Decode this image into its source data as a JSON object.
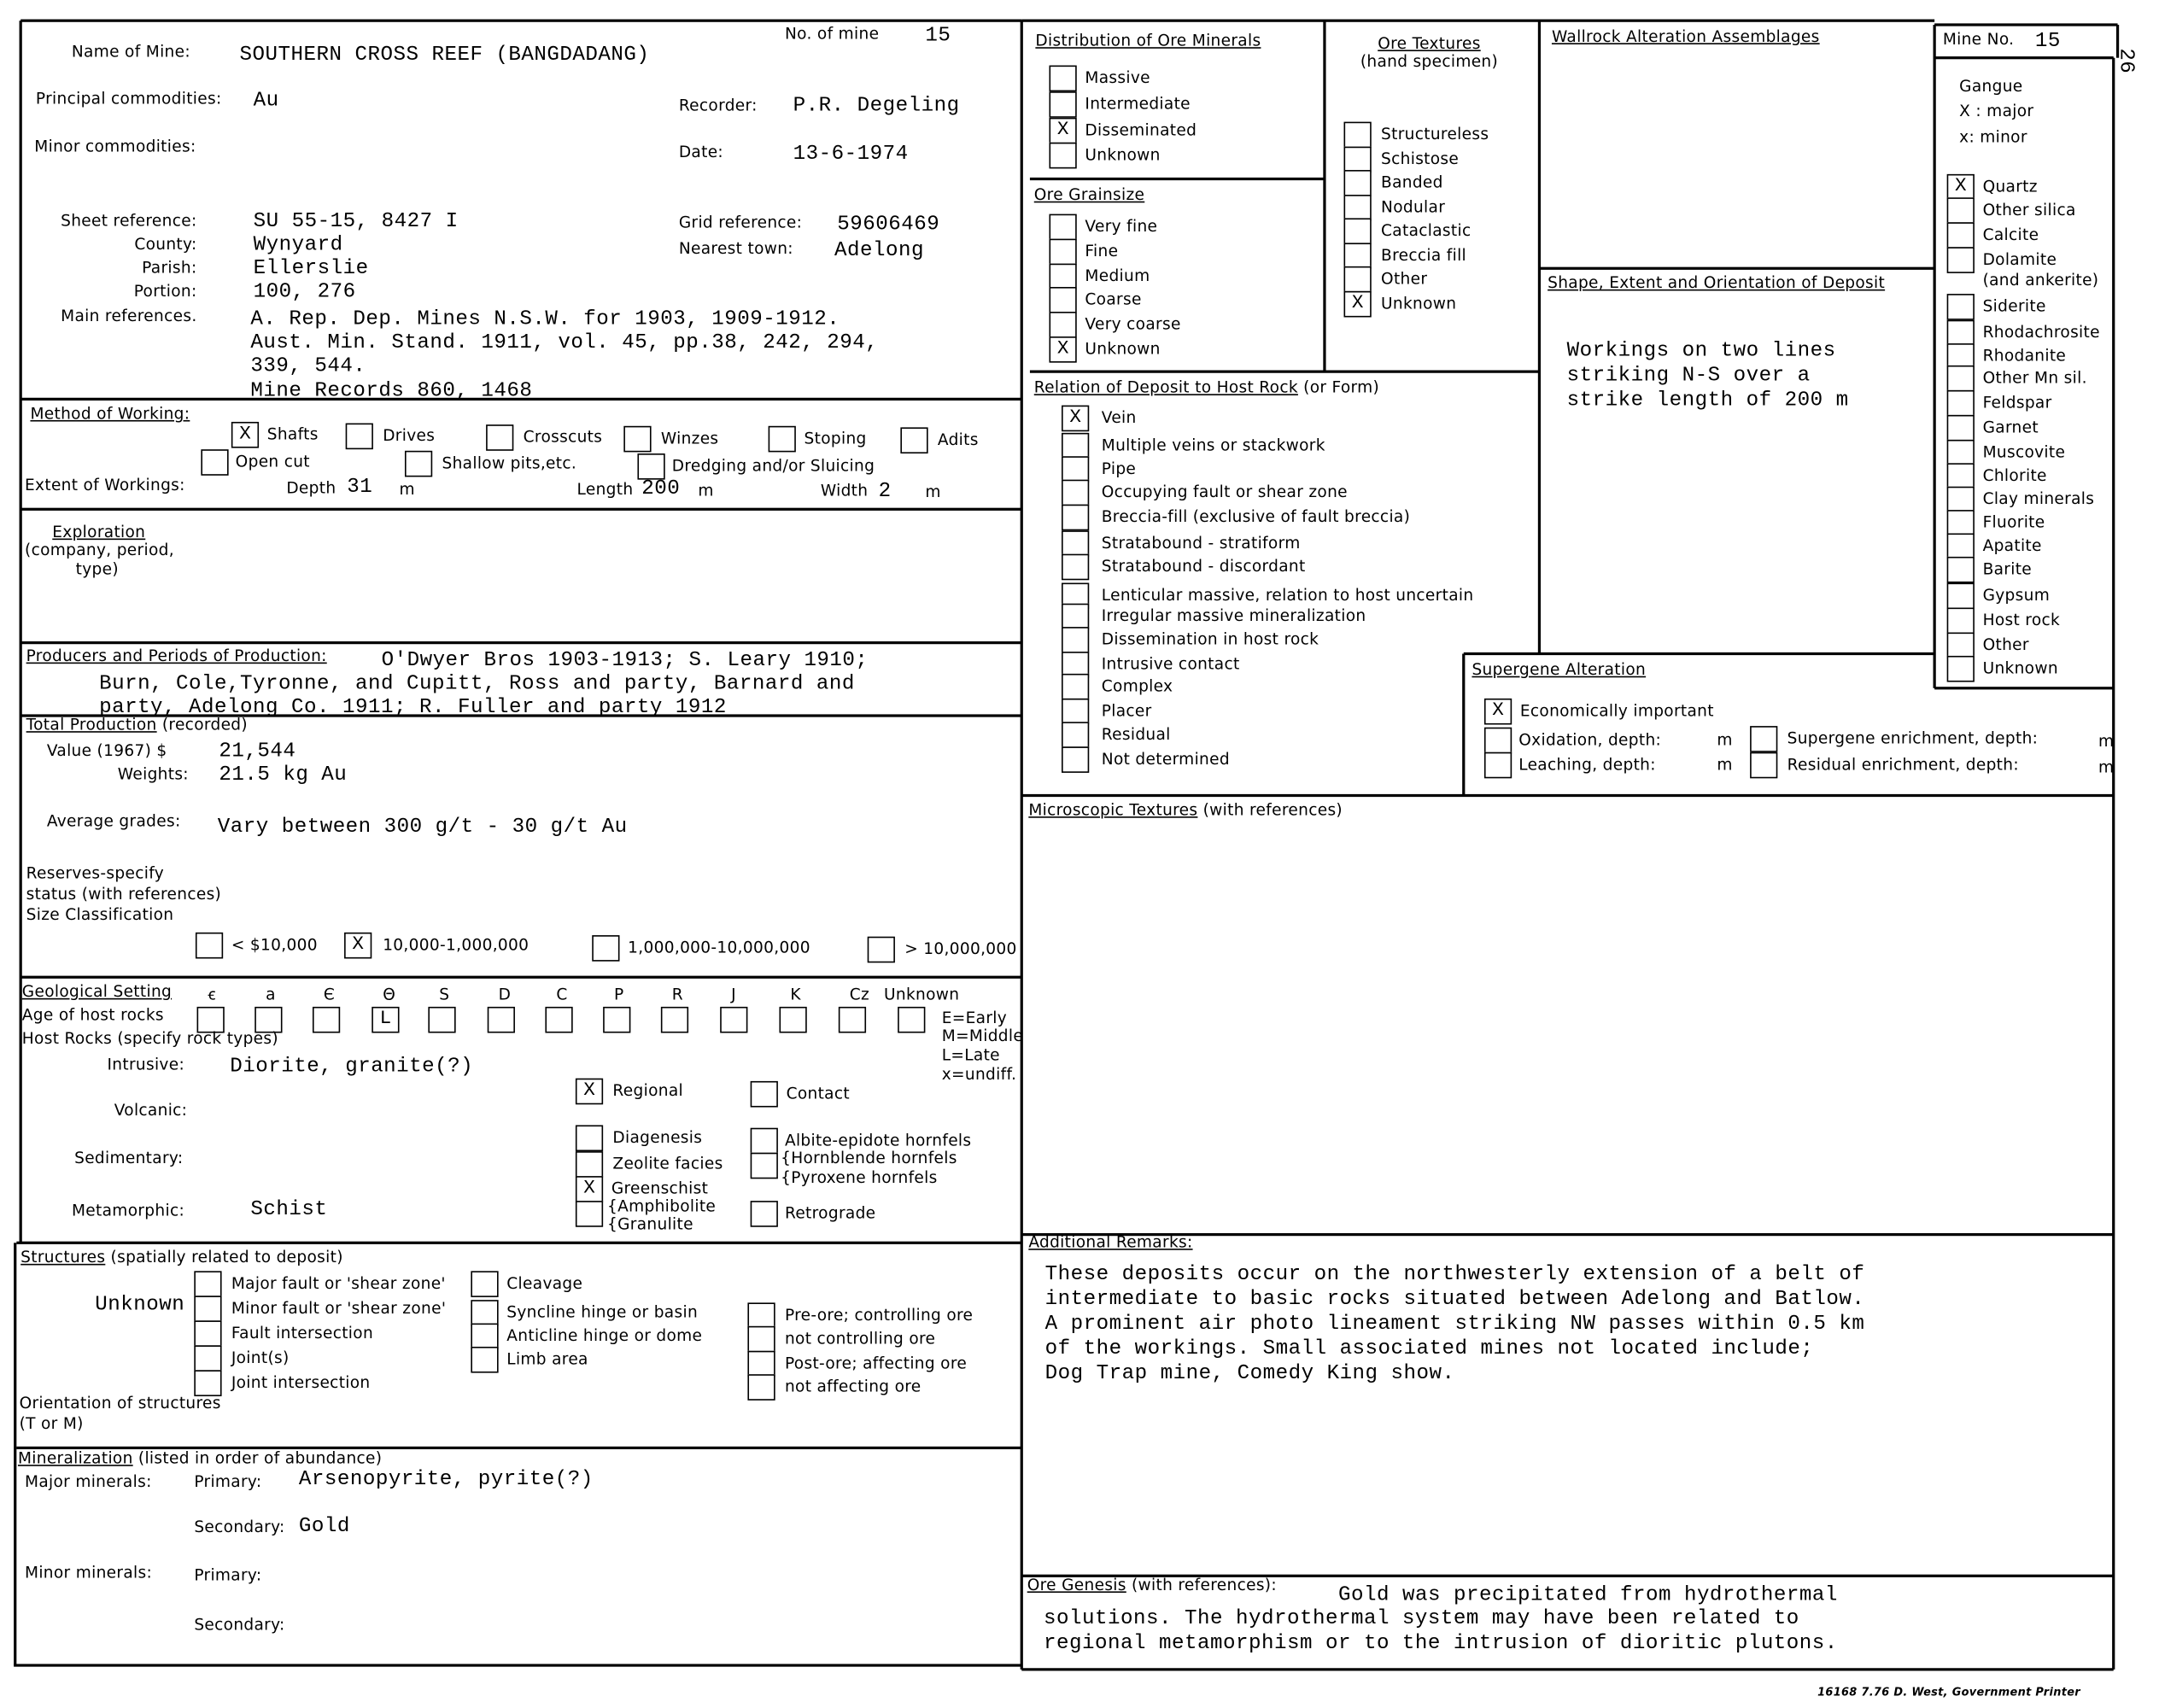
{
  "form_number": "26",
  "header": {
    "name_of_mine_label": "Name of Mine:",
    "name_of_mine": "SOUTHERN CROSS REEF (BANGDADANG)",
    "no_of_mine_label": "No. of mine",
    "no_of_mine": "15",
    "principal_label": "Principal commodities:",
    "principal": "Au",
    "minor_label": "Minor commodities:",
    "recorder_label": "Recorder:",
    "recorder": "P.R. Degeling",
    "date_label": "Date:",
    "date": "13-6-1974",
    "sheet_label": "Sheet reference:",
    "sheet": "SU 55-15, 8427 I",
    "county_label": "County:",
    "county": "Wynyard",
    "parish_label": "Parish:",
    "parish": "Ellerslie",
    "portion_label": "Portion:",
    "portion": "100, 276",
    "refs_label": "Main references.",
    "refs": [
      "A. Rep. Dep. Mines N.S.W. for 1903, 1909-1912.",
      "Aust. Min. Stand. 1911, vol. 45, pp.38, 242, 294,",
      "339, 544.",
      "Mine Records 860, 1468"
    ],
    "grid_label": "Grid reference:",
    "grid": "59606469",
    "town_label": "Nearest town:",
    "town": "Adelong"
  },
  "method": {
    "title": "Method of Working:",
    "options": [
      {
        "label": "Shafts",
        "checked": true
      },
      {
        "label": "Drives",
        "checked": false
      },
      {
        "label": "Crosscuts",
        "checked": false
      },
      {
        "label": "Winzes",
        "checked": false
      },
      {
        "label": "Stoping",
        "checked": false
      },
      {
        "label": "Adits",
        "checked": false
      },
      {
        "label": "Open cut",
        "checked": false
      },
      {
        "label": "Shallow pits,etc.",
        "checked": false
      },
      {
        "label": "Dredging and/or Sluicing",
        "checked": false
      }
    ],
    "extent_label": "Extent of Workings:",
    "depth_label": "Depth",
    "depth": "31",
    "length_label": "Length",
    "length": "200",
    "width_label": "Width",
    "width": "2",
    "unit": "m"
  },
  "exploration": {
    "title": "Exploration",
    "sub1": "(company, period,",
    "sub2": "type)"
  },
  "producers": {
    "title": "Producers and Periods of Production:",
    "lines": [
      "O'Dwyer Bros 1903-1913;   S. Leary 1910;",
      "Burn, Cole,Tyronne, and Cupitt, Ross and party, Barnard and",
      "party, Adelong Co. 1911;   R. Fuller and party 1912"
    ]
  },
  "production": {
    "title": "Total Production",
    "title_suffix": " (recorded)",
    "value_label": "Value (1967)  $",
    "value": "21,544",
    "weights_label": "Weights:",
    "weights": "21.5  kg Au",
    "grades_label": "Average grades:",
    "grades": "Vary between 300 g/t - 30 g/t Au",
    "reserves1": "Reserves-specify",
    "reserves2": "status (with references)",
    "size_label": "Size Classification",
    "sizes": [
      {
        "label": "< $10,000",
        "checked": false
      },
      {
        "label": "10,000-1,000,000",
        "checked": true
      },
      {
        "label": "1,000,000-10,000,000",
        "checked": false
      },
      {
        "label": "> 10,000,000",
        "checked": false
      }
    ]
  },
  "geology": {
    "title": "Geological Setting",
    "periods": [
      {
        "label": "ꞓ",
        "mark": ""
      },
      {
        "label": "a",
        "mark": ""
      },
      {
        "label": "Є",
        "mark": ""
      },
      {
        "label": "Θ",
        "mark": "L"
      },
      {
        "label": "S",
        "mark": ""
      },
      {
        "label": "D",
        "mark": ""
      },
      {
        "label": "C",
        "mark": ""
      },
      {
        "label": "P",
        "mark": ""
      },
      {
        "label": "R",
        "mark": ""
      },
      {
        "label": "J",
        "mark": ""
      },
      {
        "label": "K",
        "mark": ""
      },
      {
        "label": "Cz",
        "mark": ""
      },
      {
        "label": "Unknown",
        "mark": ""
      }
    ],
    "age_label": "Age of host rocks",
    "host_label": "Host Rocks (specify rock types)",
    "legend": [
      "E=Early",
      "M=Middle",
      "L=Late",
      "x=undiff."
    ],
    "intrusive_label": "Intrusive:",
    "intrusive": "Diorite, granite(?)",
    "volcanic_label": "Volcanic:",
    "sedimentary_label": "Sedimentary:",
    "metamorphic_label": "Metamorphic:",
    "metamorphic": "Schist",
    "regional": {
      "label": "Regional",
      "checked": true
    },
    "contact": {
      "label": "Contact",
      "checked": false
    },
    "diagenesis": {
      "label": "Diagenesis",
      "checked": false
    },
    "zeolite": {
      "label": "Zeolite  facies",
      "checked": false
    },
    "greenschist": {
      "label": "Greenschist",
      "checked": true
    },
    "amphibolite": {
      "label": "",
      "checked": false
    },
    "amphibolite_label": "{Amphibolite",
    "granulite_label": "{Granulite",
    "albite": {
      "label": "Albite-epidote hornfels",
      "checked": false
    },
    "hornblende": {
      "label": "",
      "checked": false
    },
    "hornblende_label": "{Hornblende  hornfels",
    "pyroxene_label": "{Pyroxene hornfels",
    "retrograde": {
      "label": "Retrograde",
      "checked": false
    }
  },
  "structures": {
    "title": "Structures",
    "title_suffix": " (spatially related to deposit)",
    "value": "Unknown",
    "col1": [
      {
        "label": "Major fault or 'shear zone'",
        "checked": false
      },
      {
        "label": "Minor fault or 'shear zone'",
        "checked": false
      },
      {
        "label": "Fault intersection",
        "checked": false
      },
      {
        "label": "Joint(s)",
        "checked": false
      },
      {
        "label": "Joint intersection",
        "checked": false
      }
    ],
    "col2": [
      {
        "label": "Cleavage",
        "checked": false
      },
      {
        "label": "Syncline hinge or basin",
        "checked": false
      },
      {
        "label": "Anticline hinge or dome",
        "checked": false
      },
      {
        "label": "Limb area",
        "checked": false
      }
    ],
    "col3": [
      {
        "label": "Pre-ore; controlling ore",
        "checked": false
      },
      {
        "label": "not controlling ore",
        "checked": false
      },
      {
        "label": "Post-ore; affecting ore",
        "checked": false
      },
      {
        "label": "not affecting ore",
        "checked": false
      }
    ],
    "orientation1": "Orientation of structures",
    "orientation2": "(T or M)"
  },
  "mineralization": {
    "title": "Mineralization",
    "title_suffix": " (listed in order of abundance)",
    "major_label": "Major minerals:",
    "minor_label": "Minor minerals:",
    "primary_label": "Primary:",
    "secondary_label": "Secondary:",
    "major_primary": "Arsenopyrite, pyrite(?)",
    "major_secondary": "Gold"
  },
  "distribution": {
    "title": "Distribution of Ore Minerals",
    "items": [
      {
        "label": "Massive",
        "checked": false
      },
      {
        "label": "Intermediate",
        "checked": false
      },
      {
        "label": "Disseminated",
        "checked": true
      },
      {
        "label": "Unknown",
        "checked": false
      }
    ]
  },
  "grainsize": {
    "title": "Ore Grainsize",
    "items": [
      {
        "label": "Very fine",
        "checked": false
      },
      {
        "label": "Fine",
        "checked": false
      },
      {
        "label": "Medium",
        "checked": false
      },
      {
        "label": "Coarse",
        "checked": false
      },
      {
        "label": "Very coarse",
        "checked": false
      },
      {
        "label": "Unknown",
        "checked": true
      }
    ]
  },
  "textures": {
    "title": "Ore Textures",
    "subtitle": "(hand specimen)",
    "items": [
      {
        "label": "Structureless",
        "checked": false
      },
      {
        "label": "Schistose",
        "checked": false
      },
      {
        "label": "Banded",
        "checked": false
      },
      {
        "label": "Nodular",
        "checked": false
      },
      {
        "label": "Cataclastic",
        "checked": false
      },
      {
        "label": "Breccia fill",
        "checked": false
      },
      {
        "label": "Other",
        "checked": false
      },
      {
        "label": "Unknown",
        "checked": true
      }
    ]
  },
  "wallrock": {
    "title": "Wallrock Alteration Assemblages"
  },
  "shape": {
    "title": "Shape, Extent and Orientation of Deposit",
    "lines": [
      "Workings on two lines",
      "striking N-S over a",
      "strike length of 200 m"
    ]
  },
  "mine_no": {
    "label": "Mine No.",
    "value": "15"
  },
  "gangue": {
    "title": "Gangue",
    "major": "X : major",
    "minor": "x: minor",
    "items": [
      {
        "label": "Quartz",
        "checked": true
      },
      {
        "label": "Other silica",
        "checked": false
      },
      {
        "label": "Calcite",
        "checked": false
      },
      {
        "label": "Dolamite",
        "checked": false
      },
      {
        "label": "Siderite",
        "checked": false
      },
      {
        "label": "Rhodachrosite",
        "checked": false
      },
      {
        "label": "Rhodanite",
        "checked": false
      },
      {
        "label": "Other Mn sil.",
        "checked": false
      },
      {
        "label": "Feldspar",
        "checked": false
      },
      {
        "label": "Garnet",
        "checked": false
      },
      {
        "label": "Muscovite",
        "checked": false
      },
      {
        "label": "Chlorite",
        "checked": false
      },
      {
        "label": "Clay minerals",
        "checked": false
      },
      {
        "label": "Fluorite",
        "checked": false
      },
      {
        "label": "Apatite",
        "checked": false
      },
      {
        "label": "Barite",
        "checked": false
      },
      {
        "label": "Gypsum",
        "checked": false
      },
      {
        "label": "Host rock",
        "checked": false
      },
      {
        "label": "Other",
        "checked": false
      },
      {
        "label": "Unknown",
        "checked": false
      }
    ],
    "ankerite_note": "(and ankerite)"
  },
  "relation": {
    "title": "Relation of Deposit to Host Rock",
    "title_suffix": " (or Form)",
    "items": [
      {
        "label": "Vein",
        "checked": true
      },
      {
        "label": "Multiple veins or stackwork",
        "checked": false
      },
      {
        "label": "Pipe",
        "checked": false
      },
      {
        "label": "Occupying fault or shear zone",
        "checked": false
      },
      {
        "label": "Breccia-fill (exclusive of fault breccia)",
        "checked": false
      },
      {
        "label": "Stratabound - stratiform",
        "checked": false
      },
      {
        "label": "Stratabound - discordant",
        "checked": false
      },
      {
        "label": "Lenticular massive, relation to host uncertain",
        "checked": false
      },
      {
        "label": "Irregular massive mineralization",
        "checked": false
      },
      {
        "label": "Dissemination in host rock",
        "checked": false
      },
      {
        "label": "Intrusive contact",
        "checked": false
      },
      {
        "label": "Complex",
        "checked": false
      },
      {
        "label": "Placer",
        "checked": false
      },
      {
        "label": "Residual",
        "checked": false
      },
      {
        "label": "Not determined",
        "checked": false
      }
    ]
  },
  "supergene": {
    "title": "Supergene Alteration",
    "unit": "m",
    "items": [
      {
        "label": "Economically important",
        "checked": true
      },
      {
        "label": "Oxidation, depth:",
        "checked": false
      },
      {
        "label": "Leaching, depth:",
        "checked": false
      },
      {
        "label": "Supergene enrichment, depth:",
        "checked": false
      },
      {
        "label": "Residual enrichment, depth:",
        "checked": false
      }
    ]
  },
  "microscopic": {
    "title": "Microscopic Textures",
    "title_suffix": " (with references)"
  },
  "remarks": {
    "title": "Additional Remarks:",
    "lines": [
      "These deposits occur on the northwesterly extension of a belt of",
      "intermediate to basic rocks situated between Adelong and Batlow.",
      "A prominent air photo lineament striking NW passes within 0.5 km",
      "of the workings.   Small associated mines not located include;",
      "Dog Trap mine, Comedy King show."
    ]
  },
  "genesis": {
    "title": "Ore Genesis",
    "title_suffix": " (with references):",
    "lines": [
      "Gold was precipitated from hydrothermal",
      "solutions.  The hydrothermal system may have been related to",
      "regional metamorphism or to the intrusion of dioritic plutons."
    ]
  },
  "footer": "16168 7.76 D. West, Government Printer"
}
